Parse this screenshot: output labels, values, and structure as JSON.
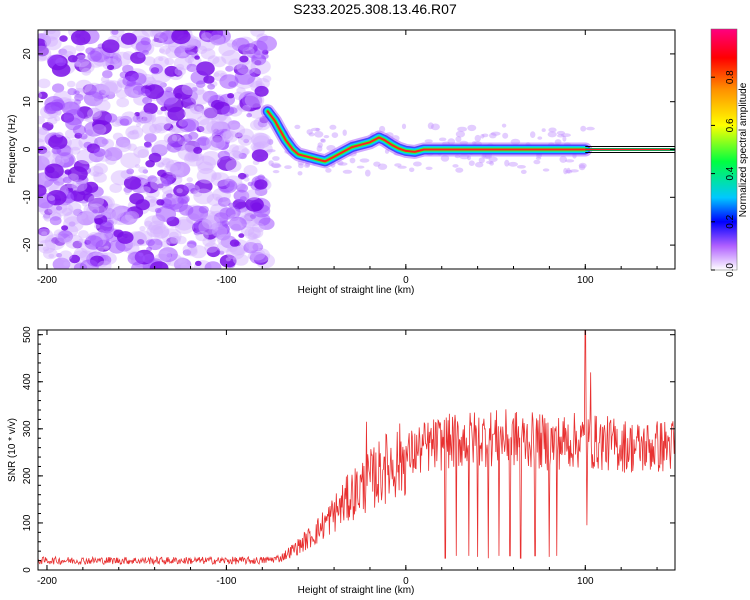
{
  "title": "S233.2025.308.13.46.R07",
  "colors": {
    "snr_line": "#e83030",
    "frame": "#000000",
    "noise_cloud": "#8a2be2",
    "trace_core": "#ff1a1a"
  },
  "chart_data": [
    {
      "type": "heatmap",
      "xlabel": "Height of straight line (km)",
      "ylabel": "Frequency (Hz)",
      "xlim": [
        -205,
        150
      ],
      "ylim": [
        -25,
        25
      ],
      "xticks": [
        -200,
        -100,
        0,
        100
      ],
      "yticks": [
        20,
        10,
        0,
        -10,
        -20
      ],
      "colorbar": {
        "label": "Normalized spectral amplitude",
        "range": [
          0.0,
          1.0
        ],
        "ticks": [
          "0.0",
          "0.2",
          "0.4",
          "0.6",
          "0.8"
        ],
        "colormap": "rainbow-white-to-magenta"
      },
      "noise_region_x": [
        -205,
        -77
      ],
      "trace_points": [
        {
          "x": -77,
          "y": 8
        },
        {
          "x": -73,
          "y": 6
        },
        {
          "x": -70,
          "y": 4
        },
        {
          "x": -67,
          "y": 2
        },
        {
          "x": -63,
          "y": 0
        },
        {
          "x": -60,
          "y": -1
        },
        {
          "x": -55,
          "y": -1.5
        },
        {
          "x": -50,
          "y": -2
        },
        {
          "x": -45,
          "y": -2.5
        },
        {
          "x": -40,
          "y": -1.5
        },
        {
          "x": -35,
          "y": -0.5
        },
        {
          "x": -30,
          "y": 0.5
        },
        {
          "x": -25,
          "y": 1
        },
        {
          "x": -20,
          "y": 1.5
        },
        {
          "x": -15,
          "y": 2.5
        },
        {
          "x": -12,
          "y": 2
        },
        {
          "x": -8,
          "y": 1
        },
        {
          "x": -4,
          "y": 0.2
        },
        {
          "x": 0,
          "y": -0.3
        },
        {
          "x": 5,
          "y": -0.5
        },
        {
          "x": 10,
          "y": 0
        },
        {
          "x": 20,
          "y": 0
        },
        {
          "x": 40,
          "y": 0
        },
        {
          "x": 60,
          "y": 0
        },
        {
          "x": 80,
          "y": 0
        },
        {
          "x": 95,
          "y": 0
        },
        {
          "x": 100,
          "y": 0
        }
      ],
      "trace_line_x": [
        100,
        150
      ],
      "trace_line_y": 0
    },
    {
      "type": "line",
      "xlabel": "Height of straight line (km)",
      "ylabel": "SNR (10 * v/v)",
      "xlim": [
        -205,
        150
      ],
      "ylim": [
        0,
        510
      ],
      "xticks": [
        -200,
        -100,
        0,
        100
      ],
      "yticks": [
        0,
        100,
        200,
        300,
        400,
        500
      ],
      "series": [
        {
          "envelope": [
            {
              "x": -205,
              "y": 20
            },
            {
              "x": -150,
              "y": 20
            },
            {
              "x": -100,
              "y": 20
            },
            {
              "x": -80,
              "y": 20
            },
            {
              "x": -70,
              "y": 25
            },
            {
              "x": -60,
              "y": 50
            },
            {
              "x": -50,
              "y": 80
            },
            {
              "x": -40,
              "y": 120
            },
            {
              "x": -30,
              "y": 160
            },
            {
              "x": -20,
              "y": 190
            },
            {
              "x": -10,
              "y": 220
            },
            {
              "x": 0,
              "y": 240
            },
            {
              "x": 10,
              "y": 260
            },
            {
              "x": 20,
              "y": 270
            },
            {
              "x": 40,
              "y": 280
            },
            {
              "x": 60,
              "y": 280
            },
            {
              "x": 80,
              "y": 270
            },
            {
              "x": 95,
              "y": 275
            },
            {
              "x": 110,
              "y": 270
            },
            {
              "x": 130,
              "y": 260
            },
            {
              "x": 150,
              "y": 265
            }
          ],
          "spikes": [
            {
              "x": -22,
              "y": 315
            },
            {
              "x": -12,
              "y": 240
            },
            {
              "x": 22,
              "y": 25
            },
            {
              "x": 28,
              "y": 30
            },
            {
              "x": 35,
              "y": 30
            },
            {
              "x": 40,
              "y": 28
            },
            {
              "x": 46,
              "y": 25
            },
            {
              "x": 52,
              "y": 30
            },
            {
              "x": 58,
              "y": 30
            },
            {
              "x": 64,
              "y": 25
            },
            {
              "x": 72,
              "y": 30
            },
            {
              "x": 80,
              "y": 28
            },
            {
              "x": 84,
              "y": 30
            },
            {
              "x": 100,
              "y": 510
            },
            {
              "x": 101,
              "y": 95
            },
            {
              "x": 103,
              "y": 420
            }
          ]
        }
      ]
    }
  ]
}
